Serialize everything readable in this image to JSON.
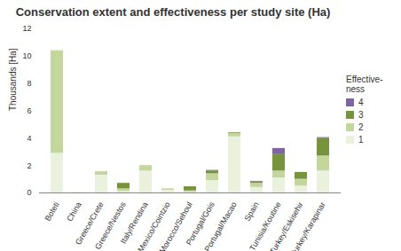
{
  "chart_data": {
    "type": "bar",
    "stacked": true,
    "title": "Conservation extent and effectiveness per study site (Ha)",
    "y_label": "Thousands [Ha]",
    "legend_title": "Effective-ness",
    "legend": "right",
    "categories": [
      "Boteti",
      "China",
      "Greece/Crete",
      "Greece/Nestos",
      "Italy/Rendina",
      "Mexico/Cointzio",
      "Morocco/Sehoul",
      "Portugal/Gois",
      "Portugal/Macao",
      "Spain",
      "Tunisia/Koutine",
      "Turkey/Eskisehir",
      "Turkey/Karapinar"
    ],
    "series": [
      {
        "name": "1",
        "color": "#eaf1dd",
        "values": [
          2.9,
          0.05,
          1.3,
          0.1,
          1.6,
          0.2,
          0.05,
          0.9,
          4.1,
          0.4,
          1.1,
          0.5,
          1.6
        ]
      },
      {
        "name": "2",
        "color": "#c3d69b",
        "values": [
          7.5,
          0,
          0.25,
          0.2,
          0.4,
          0.1,
          0.1,
          0.5,
          0.25,
          0.3,
          0.5,
          0.5,
          1.1
        ]
      },
      {
        "name": "3",
        "color": "#77933c",
        "values": [
          0,
          0,
          0,
          0.4,
          0,
          0,
          0.3,
          0.2,
          0.05,
          0.1,
          1.2,
          0.5,
          1.3
        ]
      },
      {
        "name": "4",
        "color": "#8064a2",
        "values": [
          0,
          0,
          0,
          0,
          0,
          0,
          0,
          0.05,
          0,
          0.05,
          0.45,
          0,
          0.05
        ]
      }
    ],
    "ylim": [
      0,
      12
    ],
    "yticks": [
      0,
      2,
      4,
      6,
      8,
      10,
      12
    ],
    "grid": false
  }
}
